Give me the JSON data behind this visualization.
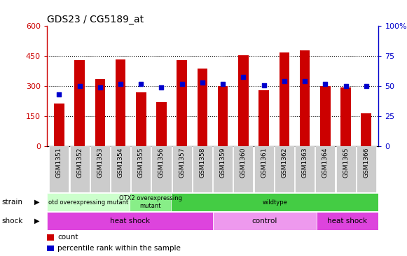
{
  "title": "GDS23 / CG5189_at",
  "samples": [
    "GSM1351",
    "GSM1352",
    "GSM1353",
    "GSM1354",
    "GSM1355",
    "GSM1356",
    "GSM1357",
    "GSM1358",
    "GSM1359",
    "GSM1360",
    "GSM1361",
    "GSM1362",
    "GSM1363",
    "GSM1364",
    "GSM1365",
    "GSM1366"
  ],
  "counts": [
    215,
    430,
    335,
    435,
    270,
    220,
    430,
    390,
    300,
    455,
    280,
    470,
    480,
    300,
    295,
    165
  ],
  "percentiles": [
    43,
    50,
    49,
    52,
    52,
    49,
    52,
    53,
    52,
    58,
    51,
    54,
    54,
    52,
    50,
    50
  ],
  "count_color": "#cc0000",
  "percentile_color": "#0000cc",
  "ylim_left": [
    0,
    600
  ],
  "ylim_right": [
    0,
    100
  ],
  "yticks_left": [
    0,
    150,
    300,
    450,
    600
  ],
  "yticks_right": [
    0,
    25,
    50,
    75,
    100
  ],
  "yticklabels_right": [
    "0",
    "25",
    "50",
    "75",
    "100%"
  ],
  "strain_groups": [
    {
      "label": "otd overexpressing mutant",
      "start": 0,
      "end": 4,
      "color": "#ccffcc"
    },
    {
      "label": "OTX2 overexpressing\nmutant",
      "start": 4,
      "end": 6,
      "color": "#88ee88"
    },
    {
      "label": "wildtype",
      "start": 6,
      "end": 16,
      "color": "#44cc44"
    }
  ],
  "shock_groups": [
    {
      "label": "heat shock",
      "start": 0,
      "end": 8,
      "color": "#dd44dd"
    },
    {
      "label": "control",
      "start": 8,
      "end": 13,
      "color": "#ee99ee"
    },
    {
      "label": "heat shock",
      "start": 13,
      "end": 16,
      "color": "#dd44dd"
    }
  ],
  "bar_width": 0.5,
  "background_color": "#ffffff",
  "plot_bg_color": "#ffffff",
  "xtick_box_color": "#cccccc",
  "grid_color": "#000000",
  "grid_linestyle": "dotted",
  "grid_linewidth": 0.8,
  "grid_levels": [
    150,
    300,
    450
  ]
}
